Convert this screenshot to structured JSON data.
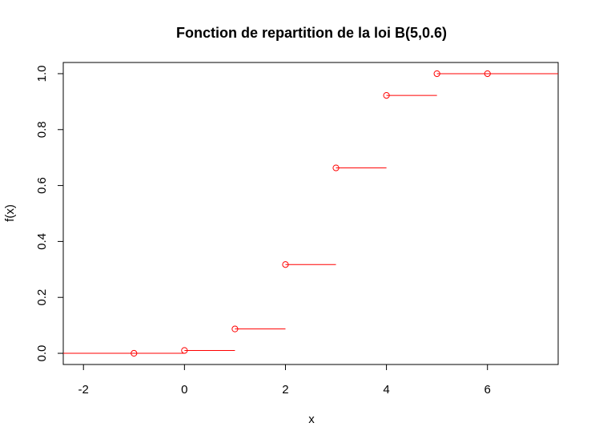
{
  "chart_data": {
    "type": "step",
    "title": "Fonction de repartition de la loi B(5,0.6)",
    "xlabel": "x",
    "ylabel": "f(x)",
    "xlim": [
      -2.4,
      7.4
    ],
    "ylim": [
      -0.04,
      1.04
    ],
    "x_ticks": [
      -2,
      0,
      2,
      4,
      6
    ],
    "x_tick_labels": [
      "-2",
      "0",
      "2",
      "4",
      "6"
    ],
    "y_ticks": [
      0.0,
      0.2,
      0.4,
      0.6,
      0.8,
      1.0
    ],
    "y_tick_labels": [
      "0.0",
      "0.2",
      "0.4",
      "0.6",
      "0.8",
      "1.0"
    ],
    "grid": false,
    "color": "#ff0000",
    "steps": [
      {
        "x_start": -2.4,
        "x_end": 0,
        "y": 0.0
      },
      {
        "x_start": 0,
        "x_end": 1,
        "y": 0.01024
      },
      {
        "x_start": 1,
        "x_end": 2,
        "y": 0.08704
      },
      {
        "x_start": 2,
        "x_end": 3,
        "y": 0.31744
      },
      {
        "x_start": 3,
        "x_end": 4,
        "y": 0.66304
      },
      {
        "x_start": 4,
        "x_end": 5,
        "y": 0.92224
      },
      {
        "x_start": 5,
        "x_end": 7.4,
        "y": 1.0
      }
    ],
    "points": [
      {
        "x": -1,
        "y": 0.0
      },
      {
        "x": 0,
        "y": 0.01024
      },
      {
        "x": 1,
        "y": 0.08704
      },
      {
        "x": 2,
        "y": 0.31744
      },
      {
        "x": 3,
        "y": 0.66304
      },
      {
        "x": 4,
        "y": 0.92224
      },
      {
        "x": 5,
        "y": 1.0
      },
      {
        "x": 6,
        "y": 1.0
      }
    ]
  }
}
